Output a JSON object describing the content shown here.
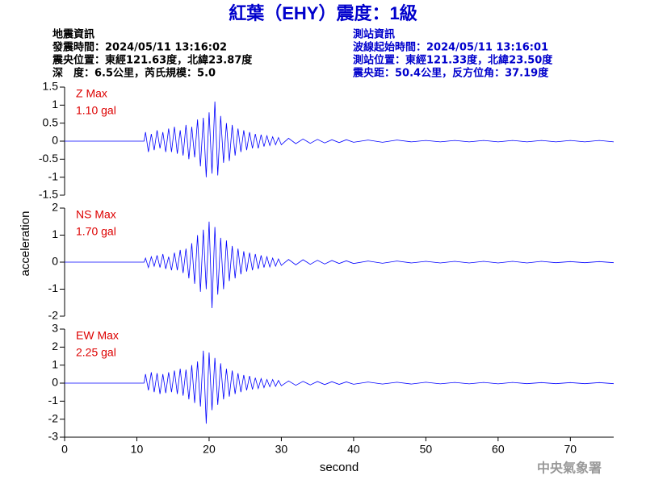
{
  "title": "紅葉（EHY）震度：1級",
  "event_info": {
    "heading": "地震資訊",
    "lines": [
      "發震時間：2024/05/11 13:16:02",
      "震央位置：東經121.63度，北緯23.87度",
      "深　度：6.5公里，芮氏規模：5.0"
    ]
  },
  "station_info": {
    "heading": "測站資訊",
    "lines": [
      "波線起始時間：2024/05/11 13:16:01",
      "測站位置：東經121.33度，北緯23.50度",
      "震央距：50.4公里，反方位角：37.19度"
    ]
  },
  "footer": "中央氣象署",
  "chart_data": [
    {
      "type": "line",
      "annotations": [
        "Z Max",
        "1.10 gal"
      ],
      "x": [
        0,
        10,
        11,
        11.2,
        11.6,
        12,
        12.4,
        12.8,
        13.2,
        13.6,
        14,
        14.4,
        14.8,
        15.2,
        15.6,
        16,
        16.4,
        16.8,
        17.2,
        17.6,
        18,
        18.4,
        18.8,
        19.2,
        19.6,
        20,
        20.4,
        20.8,
        21.2,
        21.6,
        22,
        22.4,
        22.8,
        23.2,
        23.6,
        24,
        24.4,
        24.8,
        25.2,
        25.6,
        26,
        26.4,
        26.8,
        27.2,
        27.6,
        28,
        28.4,
        28.8,
        29.2,
        29.6,
        30,
        31,
        32,
        33,
        34,
        35,
        36,
        37,
        38,
        39,
        40,
        42,
        44,
        46,
        48,
        50,
        52,
        54,
        56,
        58,
        60,
        62,
        64,
        66,
        68,
        70,
        72,
        74,
        76
      ],
      "series": [
        {
          "color": "#0000ff",
          "values": [
            0,
            0,
            0,
            0.25,
            -0.3,
            0.2,
            -0.25,
            0.3,
            -0.2,
            0.25,
            -0.3,
            0.35,
            -0.3,
            0.4,
            -0.35,
            0.3,
            -0.4,
            0.45,
            -0.5,
            0.4,
            -0.45,
            0.6,
            -0.7,
            0.65,
            -1.0,
            0.8,
            -0.9,
            1.1,
            -0.95,
            0.7,
            -0.6,
            0.5,
            -0.55,
            0.45,
            -0.4,
            0.35,
            -0.3,
            0.3,
            -0.25,
            0.25,
            -0.2,
            0.2,
            -0.2,
            0.18,
            -0.15,
            0.15,
            -0.12,
            0.12,
            -0.1,
            0.1,
            -0.1,
            0.08,
            -0.07,
            0.06,
            -0.06,
            0.05,
            -0.05,
            0.04,
            -0.04,
            0.04,
            -0.03,
            0.03,
            -0.03,
            0.03,
            -0.02,
            0.02,
            -0.02,
            0.02,
            -0.02,
            0.02,
            -0.02,
            0.02,
            -0.02,
            0.02,
            -0.02,
            0.02,
            -0.02,
            0.02,
            -0.02
          ]
        }
      ],
      "xlim": [
        0,
        76
      ],
      "ylim": [
        -1.5,
        1.5
      ],
      "yticks": [
        1.5,
        1,
        0.5,
        0,
        -0.5,
        -1,
        -1.5
      ]
    },
    {
      "type": "line",
      "annotations": [
        "NS Max",
        "1.70 gal"
      ],
      "ylabel": "acceleration",
      "x": [
        0,
        10,
        11,
        11.2,
        11.6,
        12,
        12.4,
        12.8,
        13.2,
        13.6,
        14,
        14.4,
        14.8,
        15.2,
        15.6,
        16,
        16.4,
        16.8,
        17.2,
        17.6,
        18,
        18.4,
        18.8,
        19.2,
        19.6,
        20,
        20.4,
        20.8,
        21.2,
        21.6,
        22,
        22.4,
        22.8,
        23.2,
        23.6,
        24,
        24.4,
        24.8,
        25.2,
        25.6,
        26,
        26.4,
        26.8,
        27.2,
        27.6,
        28,
        28.4,
        28.8,
        29.2,
        29.6,
        30,
        31,
        32,
        33,
        34,
        35,
        36,
        37,
        38,
        39,
        40,
        42,
        44,
        46,
        48,
        50,
        52,
        54,
        56,
        58,
        60,
        62,
        64,
        66,
        68,
        70,
        72,
        74,
        76
      ],
      "series": [
        {
          "color": "#0000ff",
          "values": [
            0,
            0,
            0,
            0.15,
            -0.2,
            0.2,
            -0.15,
            0.25,
            -0.2,
            0.3,
            -0.25,
            0.2,
            -0.3,
            0.35,
            -0.3,
            0.45,
            -0.4,
            0.5,
            -0.6,
            0.7,
            -0.8,
            1.0,
            -1.1,
            1.2,
            -1.0,
            1.5,
            -1.7,
            1.3,
            -1.2,
            0.9,
            -1.0,
            0.8,
            -0.7,
            0.6,
            -0.6,
            0.5,
            -0.45,
            0.4,
            -0.35,
            0.35,
            -0.3,
            0.3,
            -0.25,
            0.25,
            -0.2,
            0.2,
            -0.18,
            0.15,
            -0.15,
            0.12,
            -0.12,
            0.1,
            -0.1,
            0.09,
            -0.08,
            0.07,
            -0.07,
            0.06,
            -0.05,
            0.05,
            -0.05,
            0.04,
            -0.04,
            0.04,
            -0.03,
            0.03,
            -0.03,
            0.03,
            -0.03,
            0.03,
            -0.03,
            0.03,
            -0.03,
            0.03,
            -0.02,
            0.02,
            -0.02,
            0.02,
            -0.02
          ]
        }
      ],
      "xlim": [
        0,
        76
      ],
      "ylim": [
        -2,
        2
      ],
      "yticks": [
        2,
        1,
        0,
        -1,
        -2
      ]
    },
    {
      "type": "line",
      "annotations": [
        "EW Max",
        "2.25 gal"
      ],
      "xlabel": "second",
      "x": [
        0,
        10,
        11,
        11.2,
        11.6,
        12,
        12.4,
        12.8,
        13.2,
        13.6,
        14,
        14.4,
        14.8,
        15.2,
        15.6,
        16,
        16.4,
        16.8,
        17.2,
        17.6,
        18,
        18.4,
        18.8,
        19.2,
        19.6,
        20,
        20.4,
        20.8,
        21.2,
        21.6,
        22,
        22.4,
        22.8,
        23.2,
        23.6,
        24,
        24.4,
        24.8,
        25.2,
        25.6,
        26,
        26.4,
        26.8,
        27.2,
        27.6,
        28,
        28.4,
        28.8,
        29.2,
        29.6,
        30,
        31,
        32,
        33,
        34,
        35,
        36,
        37,
        38,
        39,
        40,
        42,
        44,
        46,
        48,
        50,
        52,
        54,
        56,
        58,
        60,
        62,
        64,
        66,
        68,
        70,
        72,
        74,
        76
      ],
      "series": [
        {
          "color": "#0000ff",
          "values": [
            0,
            0,
            0,
            0.5,
            -0.4,
            0.6,
            -0.5,
            0.55,
            -0.6,
            0.5,
            -0.55,
            0.6,
            -0.5,
            0.7,
            -0.6,
            0.8,
            -0.7,
            0.75,
            -0.9,
            1.0,
            -1.1,
            1.2,
            -1.3,
            1.8,
            -2.25,
            1.7,
            -1.5,
            1.4,
            -1.2,
            1.1,
            -0.9,
            0.8,
            -0.75,
            0.7,
            -0.6,
            0.55,
            -0.5,
            0.45,
            -0.4,
            0.4,
            -0.35,
            0.3,
            -0.3,
            0.25,
            -0.25,
            0.2,
            -0.2,
            0.2,
            -0.18,
            0.15,
            -0.15,
            0.12,
            -0.12,
            0.1,
            -0.1,
            0.09,
            -0.08,
            0.08,
            -0.07,
            0.07,
            -0.06,
            0.06,
            -0.05,
            0.05,
            -0.05,
            0.05,
            -0.04,
            0.04,
            -0.04,
            0.04,
            -0.04,
            0.04,
            -0.03,
            0.03,
            -0.03,
            0.03,
            -0.03,
            0.03,
            -0.03
          ]
        }
      ],
      "xlim": [
        0,
        76
      ],
      "ylim": [
        -3,
        3
      ],
      "yticks": [
        3,
        2,
        1,
        0,
        -1,
        -2,
        -3
      ],
      "xticks": [
        0,
        10,
        20,
        30,
        40,
        50,
        60,
        70
      ]
    }
  ]
}
